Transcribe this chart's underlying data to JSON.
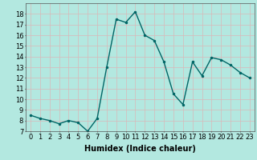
{
  "x": [
    0,
    1,
    2,
    3,
    4,
    5,
    6,
    7,
    8,
    9,
    10,
    11,
    12,
    13,
    14,
    15,
    16,
    17,
    18,
    19,
    20,
    21,
    22,
    23
  ],
  "y": [
    8.5,
    8.2,
    8.0,
    7.7,
    8.0,
    7.8,
    7.0,
    8.2,
    13.0,
    17.5,
    17.2,
    18.2,
    16.0,
    15.5,
    13.5,
    10.5,
    9.5,
    13.5,
    12.2,
    13.9,
    13.7,
    13.2,
    12.5,
    12.0
  ],
  "line_color": "#006666",
  "marker": ".",
  "marker_size": 3,
  "xlabel": "Humidex (Indice chaleur)",
  "xlabel_fontsize": 7,
  "ylim": [
    7,
    19
  ],
  "xlim": [
    -0.5,
    23.5
  ],
  "yticks": [
    7,
    8,
    9,
    10,
    11,
    12,
    13,
    14,
    15,
    16,
    17,
    18
  ],
  "xticks": [
    0,
    1,
    2,
    3,
    4,
    5,
    6,
    7,
    8,
    9,
    10,
    11,
    12,
    13,
    14,
    15,
    16,
    17,
    18,
    19,
    20,
    21,
    22,
    23
  ],
  "xtick_labels": [
    "0",
    "1",
    "2",
    "3",
    "4",
    "5",
    "6",
    "7",
    "8",
    "9",
    "10",
    "11",
    "12",
    "13",
    "14",
    "15",
    "16",
    "17",
    "18",
    "19",
    "20",
    "21",
    "22",
    "23"
  ],
  "background_color": "#b3e8e0",
  "grid_color": "#d9b8b8",
  "tick_fontsize": 6,
  "linewidth": 1.0
}
